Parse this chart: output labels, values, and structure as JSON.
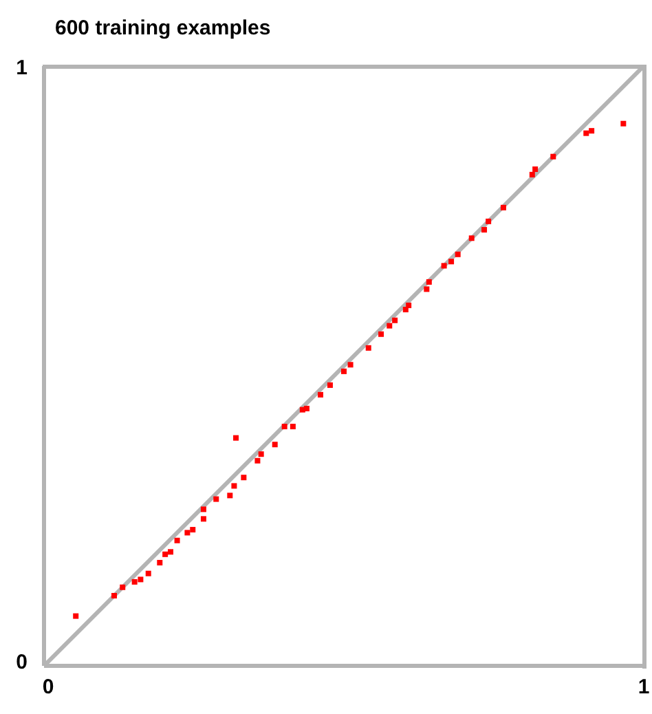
{
  "chart_data": {
    "type": "scatter",
    "title": "600 training examples",
    "xlim": [
      0,
      1
    ],
    "ylim": [
      0,
      1
    ],
    "xticks": [
      0,
      1
    ],
    "yticks": [
      0,
      1
    ],
    "series": [
      {
        "type": "line",
        "marker": "none",
        "color": "#b4b4b4",
        "x": [
          0,
          1
        ],
        "values": [
          0,
          1
        ]
      },
      {
        "marker": "square",
        "color": "#ff0000",
        "x": [
          0.053,
          0.117,
          0.131,
          0.151,
          0.161,
          0.174,
          0.193,
          0.202,
          0.211,
          0.222,
          0.239,
          0.248,
          0.266,
          0.266,
          0.287,
          0.31,
          0.317,
          0.32,
          0.333,
          0.356,
          0.362,
          0.385,
          0.401,
          0.415,
          0.431,
          0.438,
          0.461,
          0.477,
          0.5,
          0.511,
          0.541,
          0.562,
          0.576,
          0.585,
          0.603,
          0.608,
          0.638,
          0.642,
          0.667,
          0.679,
          0.69,
          0.713,
          0.734,
          0.741,
          0.766,
          0.814,
          0.819,
          0.849,
          0.904,
          0.913,
          0.966
        ],
        "values": [
          0.083,
          0.117,
          0.131,
          0.14,
          0.144,
          0.154,
          0.172,
          0.186,
          0.19,
          0.209,
          0.222,
          0.227,
          0.245,
          0.261,
          0.278,
          0.284,
          0.3,
          0.38,
          0.314,
          0.342,
          0.353,
          0.369,
          0.399,
          0.399,
          0.427,
          0.429,
          0.452,
          0.468,
          0.491,
          0.502,
          0.53,
          0.553,
          0.567,
          0.576,
          0.594,
          0.601,
          0.628,
          0.64,
          0.667,
          0.674,
          0.686,
          0.713,
          0.727,
          0.741,
          0.764,
          0.819,
          0.828,
          0.849,
          0.888,
          0.892,
          0.904
        ]
      }
    ]
  }
}
